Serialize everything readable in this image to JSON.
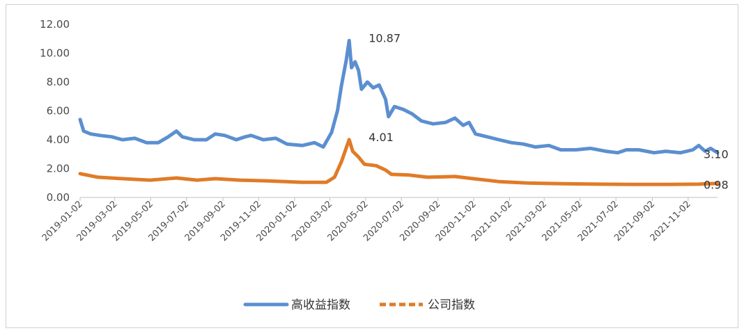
{
  "chart_data": {
    "type": "line",
    "title": "",
    "xlabel": "",
    "ylabel": "",
    "ylim": [
      0,
      12
    ],
    "y_ticks": [
      "0.00",
      "2.00",
      "4.00",
      "6.00",
      "8.00",
      "10.00",
      "12.00"
    ],
    "x_ticks": [
      "2019-01-02",
      "2019-03-02",
      "2019-05-02",
      "2019-07-02",
      "2019-09-02",
      "2019-11-02",
      "2020-01-02",
      "2020-03-02",
      "2020-05-02",
      "2020-07-02",
      "2020-09-02",
      "2020-11-02",
      "2021-01-02",
      "2021-03-02",
      "2021-05-02",
      "2021-07-02",
      "2021-09-02",
      "2021-11-02"
    ],
    "grid": false,
    "legend_position": "bottom",
    "series": [
      {
        "name": "高收益指数",
        "color": "#5b8fd0",
        "points": [
          [
            "2019-01-02",
            5.4
          ],
          [
            "2019-01-08",
            4.6
          ],
          [
            "2019-01-20",
            4.4
          ],
          [
            "2019-02-05",
            4.3
          ],
          [
            "2019-02-25",
            4.2
          ],
          [
            "2019-03-15",
            4.0
          ],
          [
            "2019-04-05",
            4.1
          ],
          [
            "2019-04-25",
            3.8
          ],
          [
            "2019-05-15",
            3.8
          ],
          [
            "2019-06-01",
            4.2
          ],
          [
            "2019-06-15",
            4.6
          ],
          [
            "2019-06-25",
            4.2
          ],
          [
            "2019-07-15",
            4.0
          ],
          [
            "2019-08-05",
            4.0
          ],
          [
            "2019-08-20",
            4.4
          ],
          [
            "2019-09-05",
            4.3
          ],
          [
            "2019-09-25",
            4.0
          ],
          [
            "2019-10-10",
            4.2
          ],
          [
            "2019-10-20",
            4.3
          ],
          [
            "2019-11-10",
            4.0
          ],
          [
            "2019-12-01",
            4.1
          ],
          [
            "2019-12-20",
            3.7
          ],
          [
            "2020-01-15",
            3.6
          ],
          [
            "2020-02-05",
            3.8
          ],
          [
            "2020-02-20",
            3.5
          ],
          [
            "2020-03-05",
            4.5
          ],
          [
            "2020-03-15",
            6.0
          ],
          [
            "2020-03-22",
            7.8
          ],
          [
            "2020-03-30",
            9.5
          ],
          [
            "2020-04-04",
            10.87
          ],
          [
            "2020-04-08",
            9.0
          ],
          [
            "2020-04-14",
            9.4
          ],
          [
            "2020-04-20",
            8.8
          ],
          [
            "2020-04-25",
            7.5
          ],
          [
            "2020-05-05",
            8.0
          ],
          [
            "2020-05-15",
            7.6
          ],
          [
            "2020-05-25",
            7.8
          ],
          [
            "2020-06-05",
            6.8
          ],
          [
            "2020-06-10",
            5.6
          ],
          [
            "2020-06-20",
            6.3
          ],
          [
            "2020-07-05",
            6.1
          ],
          [
            "2020-07-20",
            5.8
          ],
          [
            "2020-08-05",
            5.3
          ],
          [
            "2020-08-25",
            5.1
          ],
          [
            "2020-09-15",
            5.2
          ],
          [
            "2020-10-01",
            5.5
          ],
          [
            "2020-10-15",
            5.0
          ],
          [
            "2020-10-25",
            5.2
          ],
          [
            "2020-11-05",
            4.4
          ],
          [
            "2020-11-25",
            4.2
          ],
          [
            "2020-12-15",
            4.0
          ],
          [
            "2021-01-05",
            3.8
          ],
          [
            "2021-01-25",
            3.7
          ],
          [
            "2021-02-15",
            3.5
          ],
          [
            "2021-03-10",
            3.6
          ],
          [
            "2021-03-30",
            3.3
          ],
          [
            "2021-04-25",
            3.3
          ],
          [
            "2021-05-20",
            3.4
          ],
          [
            "2021-06-15",
            3.2
          ],
          [
            "2021-07-05",
            3.1
          ],
          [
            "2021-07-20",
            3.3
          ],
          [
            "2021-08-10",
            3.3
          ],
          [
            "2021-09-05",
            3.1
          ],
          [
            "2021-09-25",
            3.2
          ],
          [
            "2021-10-20",
            3.1
          ],
          [
            "2021-11-10",
            3.3
          ],
          [
            "2021-11-20",
            3.6
          ],
          [
            "2021-12-01",
            3.2
          ],
          [
            "2021-12-10",
            3.4
          ],
          [
            "2021-12-22",
            3.1
          ]
        ]
      },
      {
        "name": "公司指数",
        "color": "#e07b28",
        "points": [
          [
            "2019-01-02",
            1.65
          ],
          [
            "2019-02-01",
            1.4
          ],
          [
            "2019-03-15",
            1.3
          ],
          [
            "2019-05-01",
            1.2
          ],
          [
            "2019-06-15",
            1.35
          ],
          [
            "2019-07-20",
            1.2
          ],
          [
            "2019-08-20",
            1.3
          ],
          [
            "2019-10-01",
            1.2
          ],
          [
            "2019-11-15",
            1.15
          ],
          [
            "2020-01-15",
            1.05
          ],
          [
            "2020-02-25",
            1.05
          ],
          [
            "2020-03-10",
            1.4
          ],
          [
            "2020-03-22",
            2.5
          ],
          [
            "2020-04-04",
            4.01
          ],
          [
            "2020-04-10",
            3.2
          ],
          [
            "2020-04-20",
            2.8
          ],
          [
            "2020-04-30",
            2.3
          ],
          [
            "2020-05-20",
            2.2
          ],
          [
            "2020-06-05",
            1.9
          ],
          [
            "2020-06-15",
            1.6
          ],
          [
            "2020-07-15",
            1.55
          ],
          [
            "2020-08-15",
            1.4
          ],
          [
            "2020-10-01",
            1.45
          ],
          [
            "2020-11-01",
            1.3
          ],
          [
            "2020-12-15",
            1.1
          ],
          [
            "2021-02-01",
            1.0
          ],
          [
            "2021-04-01",
            0.95
          ],
          [
            "2021-06-01",
            0.92
          ],
          [
            "2021-08-01",
            0.9
          ],
          [
            "2021-10-01",
            0.9
          ],
          [
            "2021-11-20",
            0.92
          ],
          [
            "2021-12-22",
            0.98
          ]
        ]
      }
    ],
    "annotations": [
      {
        "text": "10.87",
        "series": 0,
        "x": "2020-04-04",
        "y": 10.87
      },
      {
        "text": "4.01",
        "series": 1,
        "x": "2020-04-04",
        "y": 4.01
      },
      {
        "text": "3.10",
        "series": 0,
        "x": "2021-12-22",
        "y": 3.1
      },
      {
        "text": "0.98",
        "series": 1,
        "x": "2021-12-22",
        "y": 0.98
      }
    ]
  }
}
